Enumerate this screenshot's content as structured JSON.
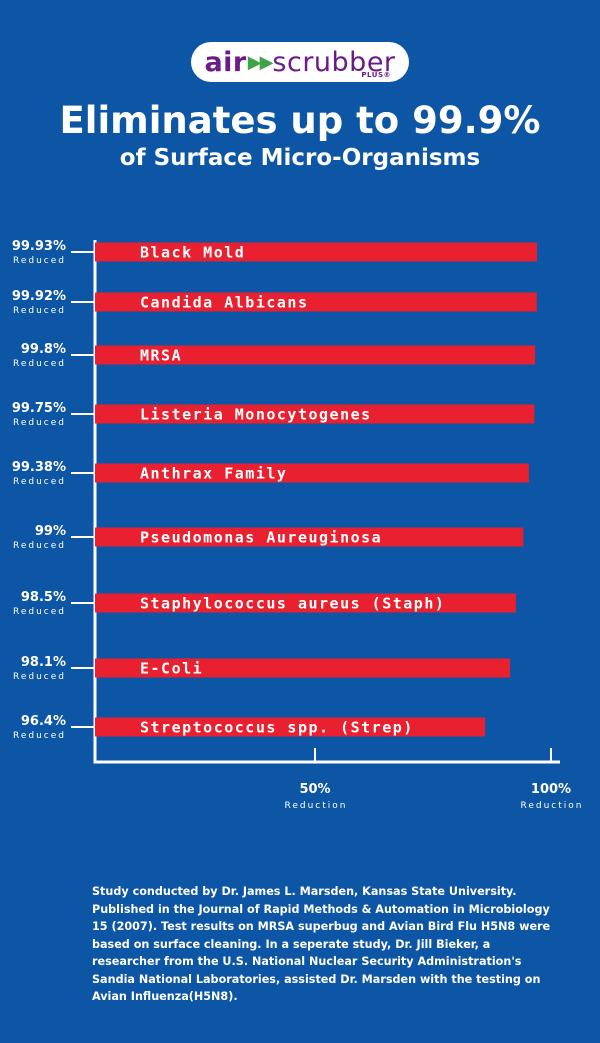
{
  "brand": {
    "air": "air",
    "dots": "▶▶",
    "scrubber": "scrubber",
    "plus": "PLUS®"
  },
  "header": {
    "title": "Eliminates up to 99.9%",
    "subtitle": "of Surface Micro-Organisms"
  },
  "chart_data": {
    "type": "bar",
    "orientation": "horizontal",
    "categories": [
      "Black Mold",
      "Candida Albicans",
      "MRSA",
      "Listeria Monocytogenes",
      "Anthrax Family",
      "Pseudomonas Aureuginosa",
      "Staphylococcus aureus (Staph)",
      "E-Coli",
      "Streptococcus spp. (Strep)"
    ],
    "values": [
      99.93,
      99.92,
      99.8,
      99.75,
      99.38,
      99,
      98.5,
      98.1,
      96.4
    ],
    "value_labels": [
      "99.93%",
      "99.92%",
      "99.8%",
      "99.75%",
      "99.38%",
      "99%",
      "98.5%",
      "98.1%",
      "96.4%"
    ],
    "value_sublabel": "Reduced",
    "xticks": [
      {
        "value": 50,
        "label": "50%",
        "sublabel": "Reduction"
      },
      {
        "value": 100,
        "label": "100%",
        "sublabel": "Reduction"
      }
    ],
    "xlim": [
      0,
      100
    ],
    "bar_color": "#e8202f"
  },
  "footnote": "Study conducted by Dr. James L. Marsden, Kansas State University. Published in the Journal of Rapid Methods & Automation in Microbiology 15 (2007). Test results on MRSA superbug and Avian Bird Flu H5N8 were based on surface cleaning. In a seperate study, Dr. Jill Bieker, a researcher from the U.S. National Nuclear Security Administration's Sandia National Laboratories, assisted Dr. Marsden with the testing on Avian Influenza(H5N8)."
}
